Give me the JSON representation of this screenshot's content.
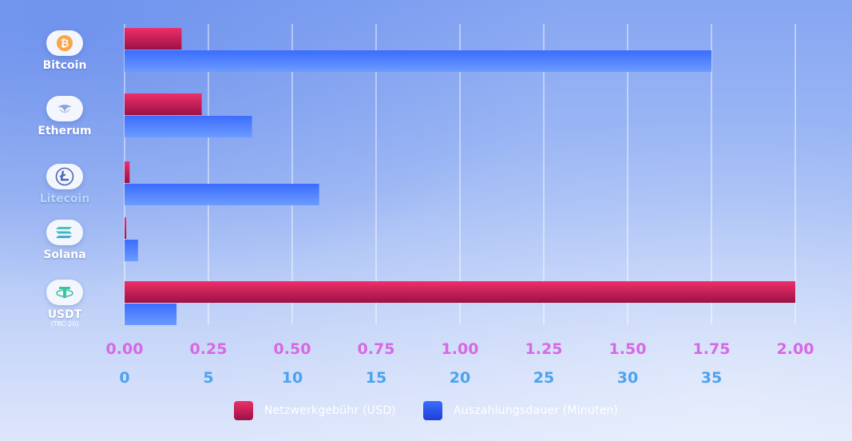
{
  "chart_data": {
    "type": "bar",
    "orientation": "horizontal",
    "categories": [
      {
        "label": "Bitcoin",
        "sublabel": "",
        "icon": "bitcoin-icon"
      },
      {
        "label": "Etherum",
        "sublabel": "",
        "icon": "ethereum-icon"
      },
      {
        "label": "Litecoin",
        "sublabel": "",
        "icon": "litecoin-icon"
      },
      {
        "label": "Solana",
        "sublabel": "",
        "icon": "solana-icon"
      },
      {
        "label": "USDT",
        "sublabel": "(TRC-20)",
        "icon": "tether-icon"
      }
    ],
    "series": [
      {
        "name": "Netzwerkgebühr (USD)",
        "axis": "top",
        "color": "#d81e5b",
        "values": [
          0.17,
          0.23,
          0.015,
          0.005,
          2.0
        ]
      },
      {
        "name": "Auszahlungsdauer (Minuten)",
        "axis": "bottom",
        "color": "#2f5bf0",
        "values": [
          35,
          7.6,
          11.6,
          0.8,
          3.1
        ]
      }
    ],
    "axes": {
      "fee": {
        "min": 0,
        "max": 2.0,
        "ticks": [
          "0.00",
          "0.25",
          "0.50",
          "0.75",
          "1.00",
          "1.25",
          "1.50",
          "1.75",
          "2.00"
        ],
        "color": "#d768e6"
      },
      "time": {
        "min": 0,
        "max": 40,
        "ticks": [
          "0",
          "5",
          "10",
          "15",
          "20",
          "25",
          "30",
          "35"
        ],
        "color": "#4aa3f0"
      }
    },
    "grid": true,
    "legend_position": "bottom"
  }
}
